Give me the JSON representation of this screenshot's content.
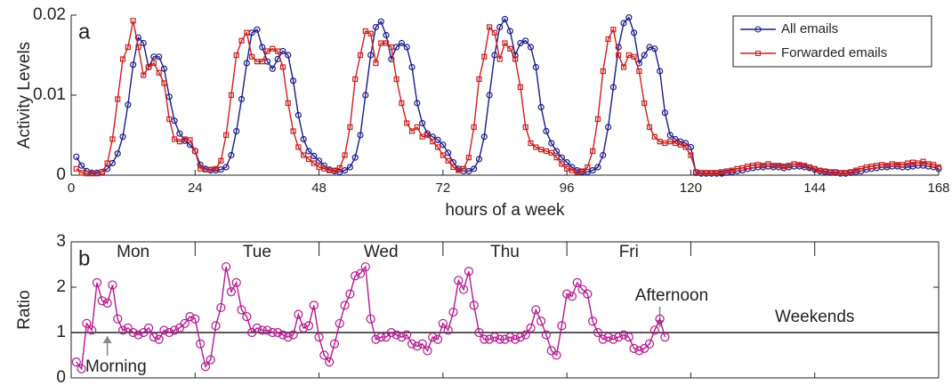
{
  "chart_data": [
    {
      "type": "line",
      "panel": "a",
      "xlabel": "hours of a week",
      "ylabel": "Activity Levels",
      "xlim": [
        0,
        168
      ],
      "xticks": [
        0,
        24,
        48,
        72,
        96,
        120,
        144,
        168
      ],
      "ylim": [
        0,
        0.02
      ],
      "yticks": [
        0,
        0.01,
        0.02
      ],
      "legend": "upper right",
      "x": [
        1,
        2,
        3,
        4,
        5,
        6,
        7,
        8,
        9,
        10,
        11,
        12,
        13,
        14,
        15,
        16,
        17,
        18,
        19,
        20,
        21,
        22,
        23,
        24,
        25,
        26,
        27,
        28,
        29,
        30,
        31,
        32,
        33,
        34,
        35,
        36,
        37,
        38,
        39,
        40,
        41,
        42,
        43,
        44,
        45,
        46,
        47,
        48,
        49,
        50,
        51,
        52,
        53,
        54,
        55,
        56,
        57,
        58,
        59,
        60,
        61,
        62,
        63,
        64,
        65,
        66,
        67,
        68,
        69,
        70,
        71,
        72,
        73,
        74,
        75,
        76,
        77,
        78,
        79,
        80,
        81,
        82,
        83,
        84,
        85,
        86,
        87,
        88,
        89,
        90,
        91,
        92,
        93,
        94,
        95,
        96,
        97,
        98,
        99,
        100,
        101,
        102,
        103,
        104,
        105,
        106,
        107,
        108,
        109,
        110,
        111,
        112,
        113,
        114,
        115,
        116,
        117,
        118,
        119,
        120,
        121,
        122,
        123,
        124,
        125,
        126,
        127,
        128,
        129,
        130,
        131,
        132,
        133,
        134,
        135,
        136,
        137,
        138,
        139,
        140,
        141,
        142,
        143,
        144,
        145,
        146,
        147,
        148,
        149,
        150,
        151,
        152,
        153,
        154,
        155,
        156,
        157,
        158,
        159,
        160,
        161,
        162,
        163,
        164,
        165,
        166,
        167,
        168
      ],
      "series": [
        {
          "name": "All emails",
          "color": "#1a1a8c",
          "marker": "circle",
          "values": [
            0.0023,
            0.0012,
            0.0005,
            0.0003,
            0.0003,
            0.0004,
            0.0008,
            0.0015,
            0.0027,
            0.0048,
            0.0088,
            0.0138,
            0.0172,
            0.0165,
            0.0135,
            0.0148,
            0.0148,
            0.0133,
            0.0098,
            0.0068,
            0.0052,
            0.0043,
            0.0038,
            0.003,
            0.0013,
            0.0008,
            0.0006,
            0.0006,
            0.0007,
            0.001,
            0.0025,
            0.0055,
            0.0095,
            0.014,
            0.0178,
            0.0182,
            0.016,
            0.0142,
            0.0133,
            0.0145,
            0.0155,
            0.015,
            0.0118,
            0.0075,
            0.0045,
            0.003,
            0.0024,
            0.0018,
            0.0012,
            0.0007,
            0.0005,
            0.0004,
            0.0006,
            0.001,
            0.0022,
            0.005,
            0.01,
            0.015,
            0.0185,
            0.0192,
            0.0175,
            0.0145,
            0.016,
            0.0165,
            0.016,
            0.0135,
            0.009,
            0.0065,
            0.0052,
            0.0048,
            0.0044,
            0.0038,
            0.0028,
            0.0016,
            0.0008,
            0.0005,
            0.0005,
            0.0008,
            0.002,
            0.0048,
            0.01,
            0.015,
            0.0185,
            0.0195,
            0.018,
            0.015,
            0.0165,
            0.0168,
            0.016,
            0.0135,
            0.0085,
            0.0055,
            0.004,
            0.003,
            0.0022,
            0.0016,
            0.001,
            0.0006,
            0.0004,
            0.0004,
            0.0006,
            0.001,
            0.0025,
            0.006,
            0.011,
            0.016,
            0.019,
            0.0197,
            0.0178,
            0.014,
            0.015,
            0.016,
            0.0158,
            0.013,
            0.0078,
            0.005,
            0.0045,
            0.0042,
            0.004,
            0.0035,
            0.0003,
            0.0002,
            0.0002,
            0.0002,
            0.0002,
            0.0002,
            0.0003,
            0.0004,
            0.0005,
            0.0006,
            0.0008,
            0.0009,
            0.001,
            0.001,
            0.0011,
            0.001,
            0.001,
            0.0009,
            0.001,
            0.0011,
            0.0011,
            0.001,
            0.0009,
            0.0007,
            0.0005,
            0.0004,
            0.0003,
            0.0003,
            0.0002,
            0.0002,
            0.0003,
            0.0004,
            0.0005,
            0.0007,
            0.0008,
            0.0009,
            0.001,
            0.001,
            0.0011,
            0.0011,
            0.001,
            0.001,
            0.0011,
            0.0012,
            0.0012,
            0.0011,
            0.001,
            0.0008
          ]
        },
        {
          "name": "Forwarded emails",
          "color": "#cc1f1f",
          "marker": "square",
          "values": [
            0.0008,
            0.0003,
            0.0002,
            0.0002,
            0.0002,
            0.0004,
            0.0015,
            0.0045,
            0.0095,
            0.0145,
            0.016,
            0.0193,
            0.016,
            0.0125,
            0.0135,
            0.014,
            0.0128,
            0.0115,
            0.007,
            0.0045,
            0.0042,
            0.0045,
            0.0044,
            0.003,
            0.0008,
            0.0007,
            0.0007,
            0.0008,
            0.0018,
            0.005,
            0.01,
            0.015,
            0.0168,
            0.0178,
            0.0148,
            0.0142,
            0.0142,
            0.0155,
            0.0158,
            0.0155,
            0.0135,
            0.009,
            0.0055,
            0.0035,
            0.0025,
            0.002,
            0.0015,
            0.001,
            0.0008,
            0.0006,
            0.0006,
            0.0009,
            0.0025,
            0.006,
            0.012,
            0.015,
            0.018,
            0.0177,
            0.014,
            0.0165,
            0.0165,
            0.016,
            0.012,
            0.009,
            0.0065,
            0.0055,
            0.006,
            0.0048,
            0.005,
            0.0042,
            0.0035,
            0.0025,
            0.0018,
            0.001,
            0.0006,
            0.0008,
            0.0022,
            0.006,
            0.012,
            0.0148,
            0.0185,
            0.0178,
            0.0145,
            0.0165,
            0.0158,
            0.0145,
            0.011,
            0.006,
            0.004,
            0.0035,
            0.0032,
            0.003,
            0.0028,
            0.0022,
            0.0014,
            0.0008,
            0.0006,
            0.0004,
            0.0005,
            0.001,
            0.003,
            0.007,
            0.013,
            0.017,
            0.0182,
            0.015,
            0.0135,
            0.015,
            0.0148,
            0.013,
            0.009,
            0.006,
            0.0048,
            0.0042,
            0.004,
            0.0042,
            0.004,
            0.0038,
            0.0035,
            0.0025,
            0.0004,
            0.0003,
            0.0003,
            0.0003,
            0.0003,
            0.0004,
            0.0005,
            0.0006,
            0.0008,
            0.0009,
            0.0011,
            0.0012,
            0.0013,
            0.0012,
            0.0014,
            0.0012,
            0.0012,
            0.0011,
            0.0012,
            0.0014,
            0.0013,
            0.0012,
            0.001,
            0.0008,
            0.0006,
            0.0005,
            0.0004,
            0.0004,
            0.0003,
            0.0003,
            0.0004,
            0.0006,
            0.0008,
            0.001,
            0.0011,
            0.0012,
            0.0013,
            0.0012,
            0.0014,
            0.0013,
            0.0013,
            0.0015,
            0.0016,
            0.0015,
            0.0017,
            0.0014,
            0.0013,
            0.001
          ]
        }
      ]
    },
    {
      "type": "line",
      "panel": "b",
      "ylabel": "Ratio",
      "xlim": [
        0,
        168
      ],
      "xticks": [
        0,
        24,
        48,
        72,
        96,
        120,
        144,
        168
      ],
      "ylim": [
        0,
        3
      ],
      "yticks": [
        0,
        1,
        2,
        3
      ],
      "hline": 1,
      "day_labels": [
        "Mon",
        "Tue",
        "Wed",
        "Thu",
        "Fri"
      ],
      "weekend_label": "Weekends",
      "annotations": [
        "Morning",
        "Afternoon"
      ],
      "x": [
        1,
        2,
        3,
        4,
        5,
        6,
        7,
        8,
        9,
        10,
        11,
        12,
        13,
        14,
        15,
        16,
        17,
        18,
        19,
        20,
        21,
        22,
        23,
        24,
        25,
        26,
        27,
        28,
        29,
        30,
        31,
        32,
        33,
        34,
        35,
        36,
        37,
        38,
        39,
        40,
        41,
        42,
        43,
        44,
        45,
        46,
        47,
        48,
        49,
        50,
        51,
        52,
        53,
        54,
        55,
        56,
        57,
        58,
        59,
        60,
        61,
        62,
        63,
        64,
        65,
        66,
        67,
        68,
        69,
        70,
        71,
        72,
        73,
        74,
        75,
        76,
        77,
        78,
        79,
        80,
        81,
        82,
        83,
        84,
        85,
        86,
        87,
        88,
        89,
        90,
        91,
        92,
        93,
        94,
        95,
        96,
        97,
        98,
        99,
        100,
        101,
        102,
        103,
        104,
        105,
        106,
        107,
        108,
        109,
        110,
        111,
        112,
        113,
        114,
        115
      ],
      "series": [
        {
          "color": "#b5178f",
          "marker": "circle",
          "values": [
            0.35,
            0.2,
            1.2,
            1.05,
            2.1,
            1.7,
            1.65,
            2.05,
            1.3,
            1.05,
            1.1,
            1.0,
            0.95,
            1.0,
            1.1,
            0.9,
            0.85,
            1.05,
            1.0,
            1.05,
            1.1,
            1.2,
            1.35,
            1.3,
            0.75,
            0.25,
            0.4,
            1.15,
            1.55,
            2.45,
            1.9,
            2.1,
            1.5,
            1.35,
            1.0,
            1.1,
            1.05,
            1.05,
            1.0,
            1.0,
            0.95,
            0.9,
            0.95,
            1.4,
            1.1,
            1.15,
            1.6,
            0.9,
            0.5,
            0.35,
            0.75,
            1.2,
            1.6,
            1.85,
            2.25,
            2.3,
            2.45,
            1.3,
            0.85,
            0.9,
            0.9,
            1.0,
            0.95,
            0.9,
            0.95,
            0.75,
            0.7,
            0.75,
            0.6,
            0.9,
            0.85,
            1.2,
            1.05,
            1.45,
            2.15,
            1.95,
            2.35,
            1.6,
            1.0,
            0.85,
            0.85,
            0.9,
            0.85,
            0.85,
            0.9,
            0.85,
            0.9,
            0.95,
            1.1,
            1.5,
            1.25,
            0.95,
            0.6,
            0.5,
            1.15,
            1.85,
            1.8,
            2.1,
            1.95,
            1.85,
            1.25,
            1.0,
            0.85,
            0.9,
            0.85,
            0.9,
            0.95,
            0.9,
            0.65,
            0.6,
            0.65,
            0.75,
            1.05,
            1.3,
            0.9
          ]
        }
      ]
    }
  ]
}
